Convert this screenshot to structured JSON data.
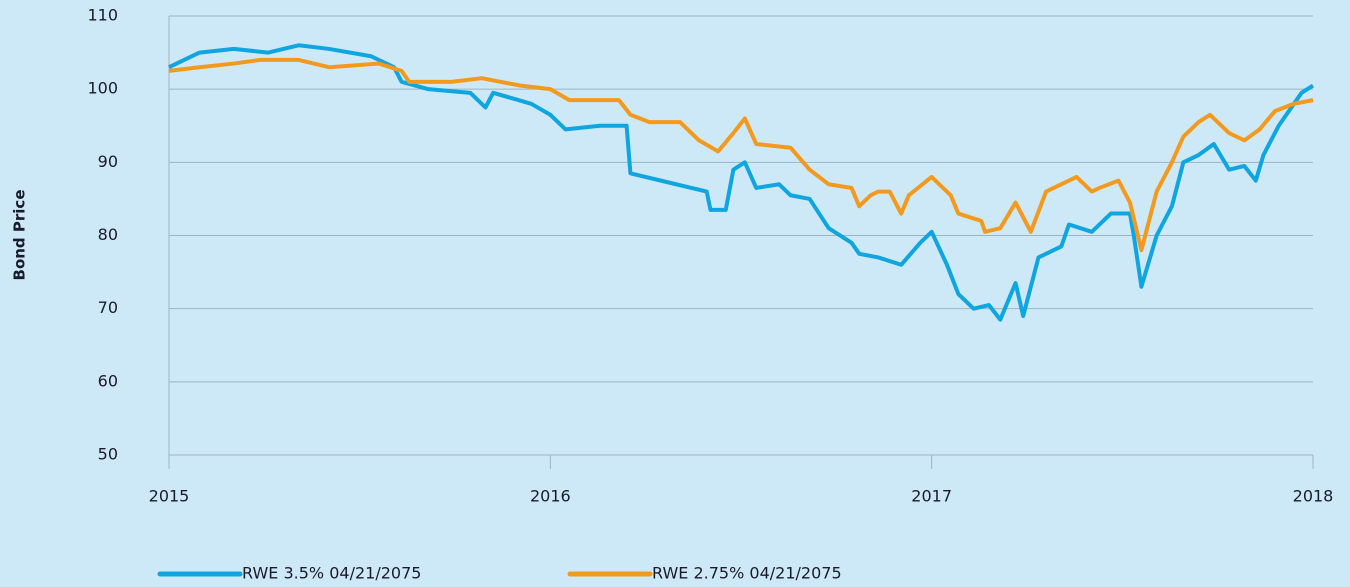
{
  "chart_data": {
    "type": "line",
    "y_label": "Bond Price",
    "xlim": [
      2015,
      2018
    ],
    "xticks": [
      2015,
      2016,
      2017,
      2018
    ],
    "ylim": [
      50,
      110
    ],
    "yticks": [
      50,
      60,
      70,
      80,
      90,
      100,
      110
    ],
    "grid": true,
    "legend": "bottom",
    "series": [
      {
        "name": "RWE 3.5% 04/21/2075",
        "color": "#0ea5e0",
        "x": [
          2015.0,
          2015.08,
          2015.17,
          2015.26,
          2015.34,
          2015.42,
          2015.53,
          2015.59,
          2015.61,
          2015.68,
          2015.79,
          2015.83,
          2015.85,
          2015.95,
          2016.0,
          2016.04,
          2016.13,
          2016.2,
          2016.21,
          2016.29,
          2016.37,
          2016.41,
          2016.42,
          2016.46,
          2016.48,
          2016.51,
          2016.54,
          2016.6,
          2016.63,
          2016.68,
          2016.73,
          2016.79,
          2016.81,
          2016.86,
          2016.92,
          2016.97,
          2017.0,
          2017.04,
          2017.07,
          2017.11,
          2017.15,
          2017.18,
          2017.22,
          2017.24,
          2017.28,
          2017.34,
          2017.36,
          2017.42,
          2017.47,
          2017.52,
          2017.53,
          2017.55,
          2017.59,
          2017.63,
          2017.66,
          2017.7,
          2017.74,
          2017.78,
          2017.82,
          2017.85,
          2017.87,
          2017.91,
          2017.97,
          2018.0
        ],
        "values": [
          103,
          105,
          105.5,
          105,
          106,
          105.5,
          104.5,
          103,
          101,
          100,
          99.5,
          97.5,
          99.5,
          98,
          96.5,
          94.5,
          95,
          95,
          88.5,
          87.5,
          86.5,
          86,
          83.5,
          83.5,
          89,
          90,
          86.5,
          87,
          85.5,
          85,
          81,
          79,
          77.5,
          77,
          76,
          79,
          80.5,
          76,
          72,
          70,
          70.5,
          68.5,
          73.5,
          69,
          77,
          78.5,
          81.5,
          80.5,
          83,
          83,
          80,
          73,
          80,
          84,
          90,
          91,
          92.5,
          89,
          89.5,
          87.5,
          91,
          95,
          99.5,
          100.5
        ]
      },
      {
        "name": "RWE 2.75% 04/21/2075",
        "color": "#f39a1e",
        "x": [
          2015.0,
          2015.08,
          2015.17,
          2015.24,
          2015.34,
          2015.42,
          2015.55,
          2015.61,
          2015.63,
          2015.74,
          2015.82,
          2015.92,
          2016.0,
          2016.05,
          2016.18,
          2016.21,
          2016.26,
          2016.34,
          2016.39,
          2016.44,
          2016.48,
          2016.51,
          2016.54,
          2016.63,
          2016.68,
          2016.73,
          2016.79,
          2016.81,
          2016.84,
          2016.86,
          2016.89,
          2016.92,
          2016.94,
          2017.0,
          2017.05,
          2017.07,
          2017.13,
          2017.14,
          2017.18,
          2017.22,
          2017.26,
          2017.3,
          2017.38,
          2017.42,
          2017.44,
          2017.49,
          2017.52,
          2017.55,
          2017.59,
          2017.63,
          2017.66,
          2017.7,
          2017.73,
          2017.78,
          2017.82,
          2017.86,
          2017.9,
          2017.95,
          2018.0
        ],
        "values": [
          102.5,
          103,
          103.5,
          104,
          104,
          103,
          103.5,
          102.5,
          101,
          101,
          101.5,
          100.5,
          100,
          98.5,
          98.5,
          96.5,
          95.5,
          95.5,
          93,
          91.5,
          94,
          96,
          92.5,
          92,
          89,
          87,
          86.5,
          84,
          85.5,
          86,
          86,
          83,
          85.5,
          88,
          85.5,
          83,
          82,
          80.5,
          81,
          84.5,
          80.5,
          86,
          88,
          86,
          86.5,
          87.5,
          84.5,
          78,
          86,
          90,
          93.5,
          95.5,
          96.5,
          94,
          93,
          94.5,
          97,
          98,
          98.5
        ]
      }
    ]
  }
}
